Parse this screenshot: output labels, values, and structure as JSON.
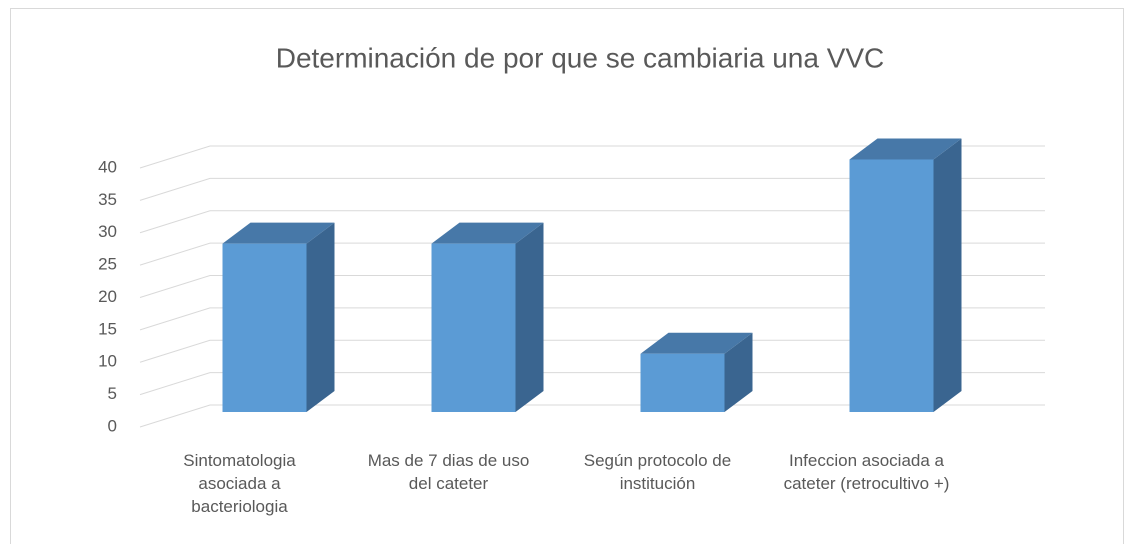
{
  "chart_data": {
    "type": "bar3d",
    "title": "Determinación de por que se cambiaria una VVC",
    "categories": [
      "Sintomatologia asociada a bacteriologia",
      "Mas de 7 dias de uso del cateter",
      "Según protocolo de institución",
      "Infeccion asociada a cateter (retrocultivo +)"
    ],
    "values": [
      26,
      26,
      9,
      39
    ],
    "color": "#5b9bd5",
    "ylim": [
      0,
      40
    ],
    "yticks": [
      0,
      5,
      10,
      15,
      20,
      25,
      30,
      35,
      40
    ],
    "grid": true
  }
}
